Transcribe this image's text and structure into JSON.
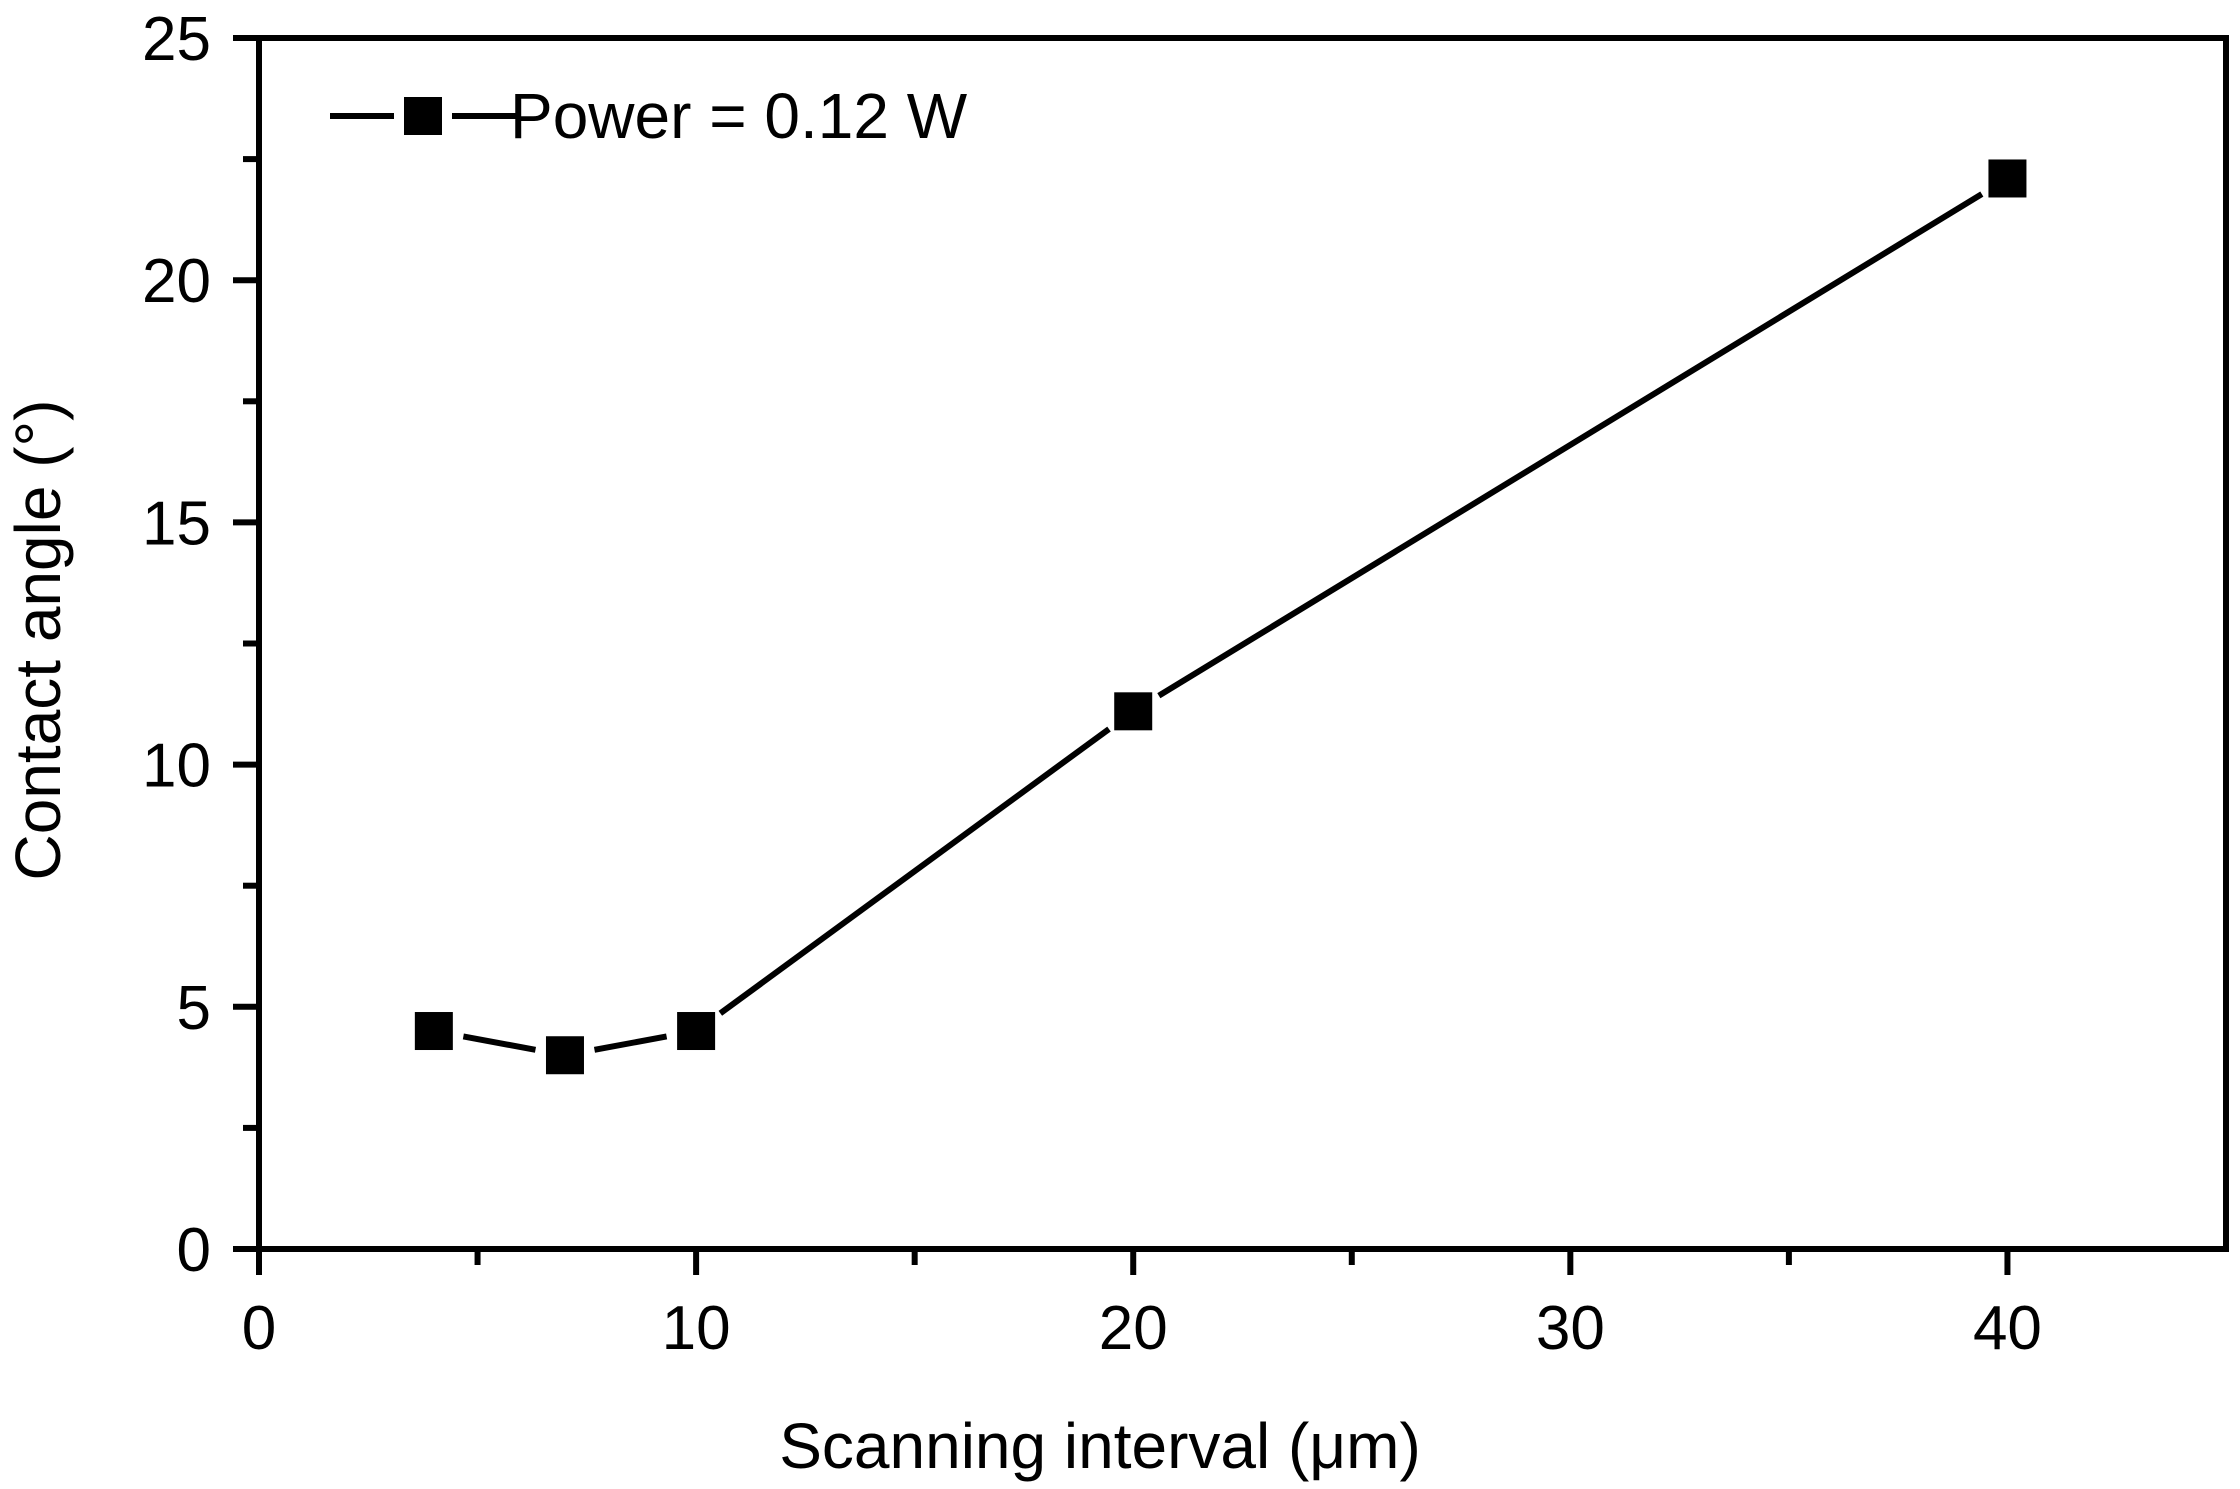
{
  "chart_data": {
    "type": "line",
    "title": "",
    "xlabel": "Scanning interval (μm)",
    "ylabel": "Contact angle (°)",
    "xlim": [
      0,
      45
    ],
    "ylim": [
      0,
      25
    ],
    "x_ticks": [
      0,
      10,
      20,
      30,
      40
    ],
    "x_minor_ticks": [
      5,
      15,
      25,
      35
    ],
    "y_ticks": [
      0,
      5,
      10,
      15,
      20,
      25
    ],
    "y_minor_ticks": [
      2.5,
      7.5,
      12.5,
      17.5,
      22.5
    ],
    "grid": false,
    "legend": {
      "position": "top-left"
    },
    "series": [
      {
        "name": "Power = 0.12 W",
        "marker": "square",
        "color": "#000000",
        "x": [
          4,
          7,
          10,
          20,
          40
        ],
        "y": [
          4.5,
          4.0,
          4.5,
          11.1,
          22.1
        ]
      }
    ]
  }
}
